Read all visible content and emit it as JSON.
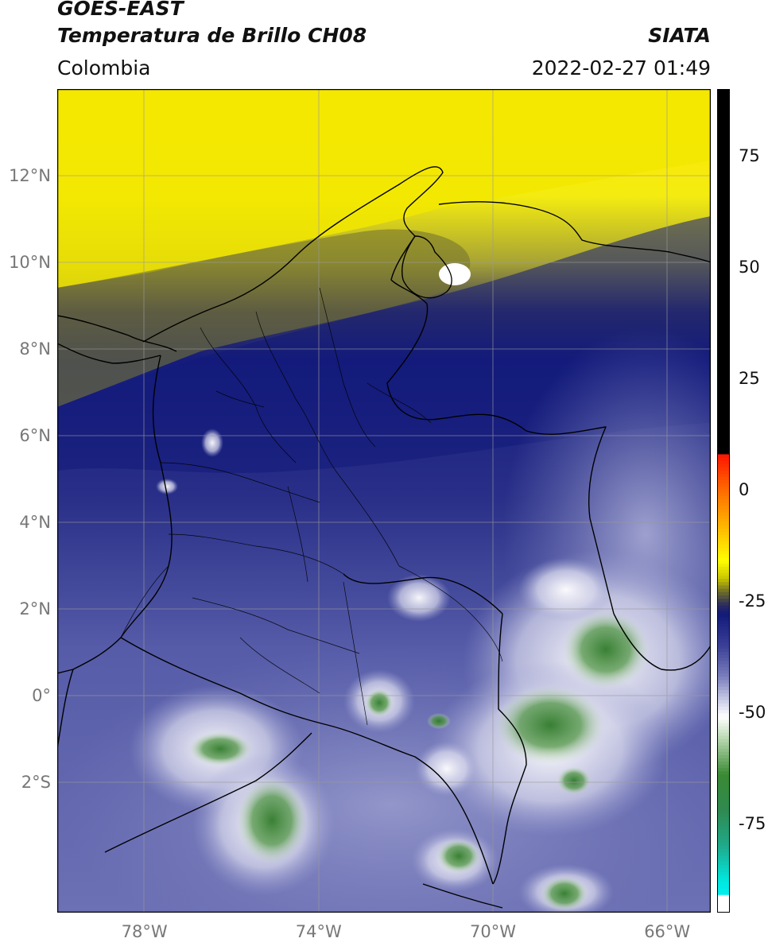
{
  "header": {
    "satellite": "GOES-EAST",
    "product": "Temperatura de Brillo CH08",
    "brand": "SIATA",
    "region": "Colombia",
    "timestamp": "2022-02-27 01:49"
  },
  "map": {
    "lon_range": [
      -80,
      -65
    ],
    "lat_range": [
      -5,
      14
    ],
    "lat_ticks": [
      {
        "value": 12,
        "label": "12°N"
      },
      {
        "value": 10,
        "label": "10°N"
      },
      {
        "value": 8,
        "label": "8°N"
      },
      {
        "value": 6,
        "label": "6°N"
      },
      {
        "value": 4,
        "label": "4°N"
      },
      {
        "value": 2,
        "label": "2°N"
      },
      {
        "value": 0,
        "label": "0°"
      },
      {
        "value": -2,
        "label": "2°S"
      }
    ],
    "lon_ticks": [
      {
        "value": -78,
        "label": "78°W"
      },
      {
        "value": -74,
        "label": "74°W"
      },
      {
        "value": -70,
        "label": "70°W"
      },
      {
        "value": -66,
        "label": "66°W"
      }
    ],
    "colors": {
      "yellow": "#f2e800",
      "olive": "#6e6e2c",
      "navy": "#1a1f78",
      "blue": "#3a3f96",
      "lavender": "#8f93c8",
      "white": "#f4f4f8",
      "green": "#3f8a3a",
      "border": "#000000",
      "grid": "#9a9a9a"
    }
  },
  "colorbar": {
    "range": [
      -95,
      90
    ],
    "ticks": [
      {
        "value": 75,
        "label": "75"
      },
      {
        "value": 50,
        "label": "50"
      },
      {
        "value": 25,
        "label": "25"
      },
      {
        "value": 0,
        "label": "0"
      },
      {
        "value": -25,
        "label": "-25"
      },
      {
        "value": -50,
        "label": "-50"
      },
      {
        "value": -75,
        "label": "-75"
      }
    ],
    "stops": [
      {
        "value": 90,
        "color": "#000000"
      },
      {
        "value": 8,
        "color": "#000000"
      },
      {
        "value": 7.9,
        "color": "#ff1500"
      },
      {
        "value": 0,
        "color": "#ff6a00"
      },
      {
        "value": -8,
        "color": "#ffb400"
      },
      {
        "value": -16,
        "color": "#ffff00"
      },
      {
        "value": -20,
        "color": "#c8c400"
      },
      {
        "value": -23,
        "color": "#6b6b2a"
      },
      {
        "value": -26,
        "color": "#2a2a60"
      },
      {
        "value": -28,
        "color": "#121a7a"
      },
      {
        "value": -35,
        "color": "#3a3f96"
      },
      {
        "value": -42,
        "color": "#7a7ebc"
      },
      {
        "value": -48,
        "color": "#d4d6ec"
      },
      {
        "value": -51,
        "color": "#ffffff"
      },
      {
        "value": -56,
        "color": "#b8d8b0"
      },
      {
        "value": -64,
        "color": "#3a8a34"
      },
      {
        "value": -72,
        "color": "#2f8a50"
      },
      {
        "value": -80,
        "color": "#1faa8a"
      },
      {
        "value": -88,
        "color": "#00e8e0"
      },
      {
        "value": -91,
        "color": "#00f0f0"
      },
      {
        "value": -91.1,
        "color": "#ffffff"
      },
      {
        "value": -95,
        "color": "#ffffff"
      }
    ]
  }
}
